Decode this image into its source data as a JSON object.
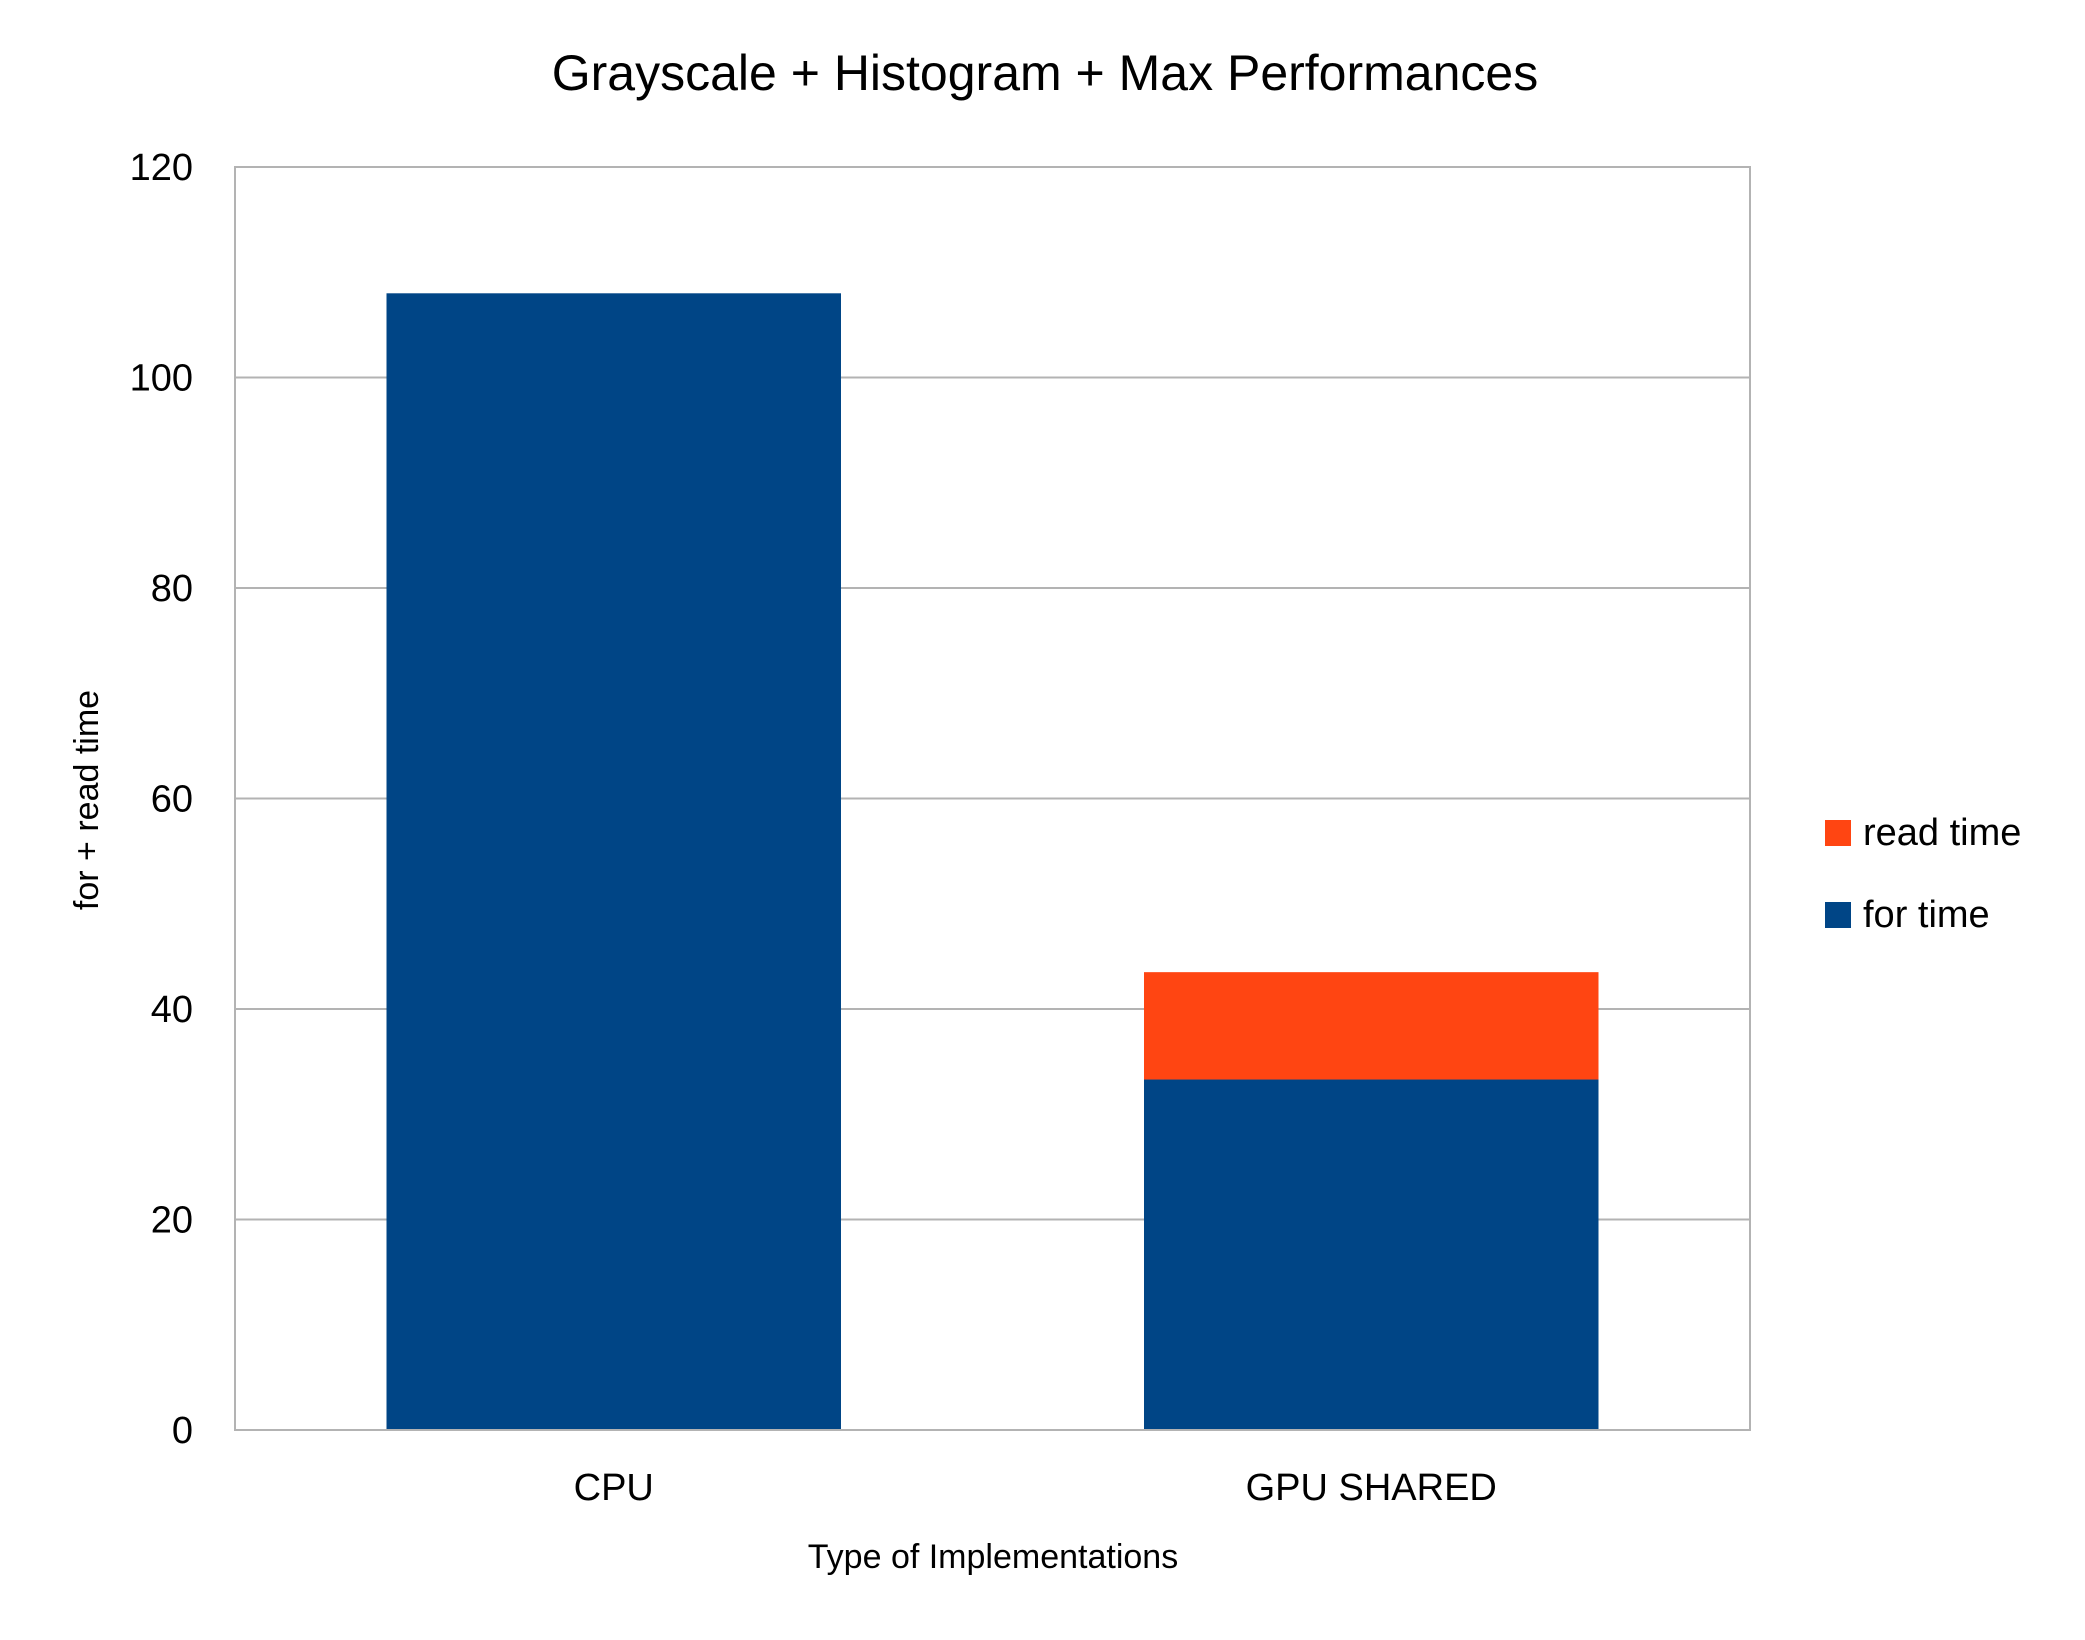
{
  "chart_data": {
    "type": "bar",
    "stacked": true,
    "title": "Grayscale + Histogram + Max Performances",
    "xlabel": "Type of Implementations",
    "ylabel": "for + read time",
    "categories": [
      "CPU",
      "GPU SHARED"
    ],
    "series": [
      {
        "name": "for time",
        "values": [
          108,
          33.3
        ],
        "color": "#004586"
      },
      {
        "name": "read time",
        "values": [
          0,
          10.2
        ],
        "color": "#ff4512"
      }
    ],
    "ylim": [
      0,
      120
    ],
    "yticks": [
      0,
      20,
      40,
      60,
      80,
      100,
      120
    ],
    "grid": true,
    "legend_position": "right",
    "legend_order": [
      "read time",
      "for time"
    ]
  }
}
